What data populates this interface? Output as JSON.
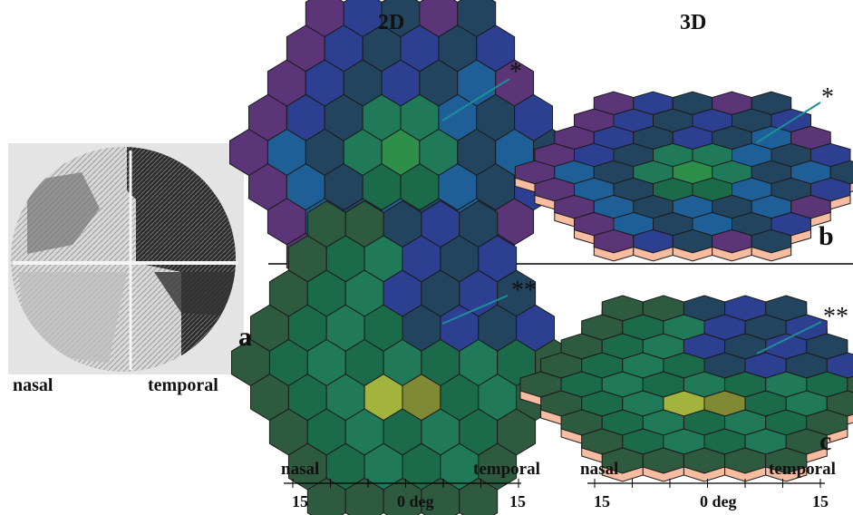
{
  "headers": {
    "col_2d": "2D",
    "col_3d": "3D"
  },
  "panel_labels": {
    "a": "a",
    "b": "b",
    "c": "c"
  },
  "field_plot": {
    "nasal": "nasal",
    "temporal": "temporal"
  },
  "markers": {
    "single": "*",
    "double": "**"
  },
  "axes": {
    "left": {
      "nasal": "nasal",
      "temporal": "temporal",
      "min": "15",
      "center": "0 deg",
      "max": "15"
    },
    "right": {
      "nasal": "nasal",
      "temporal": "temporal",
      "min": "15",
      "center": "0 deg",
      "max": "15"
    }
  },
  "colors": {
    "navy": "#23445e",
    "blue": "#1f5f97",
    "indigo": "#2c3f91",
    "purple": "#5c3478",
    "green": "#1b6b4a",
    "darkgreen": "#2e5a40",
    "olive": "#808a35",
    "yellow": "#a2b43c",
    "brightgreen": "#2d8f4a",
    "teal": "#207a5a",
    "skirt": "#f8bca0"
  }
}
